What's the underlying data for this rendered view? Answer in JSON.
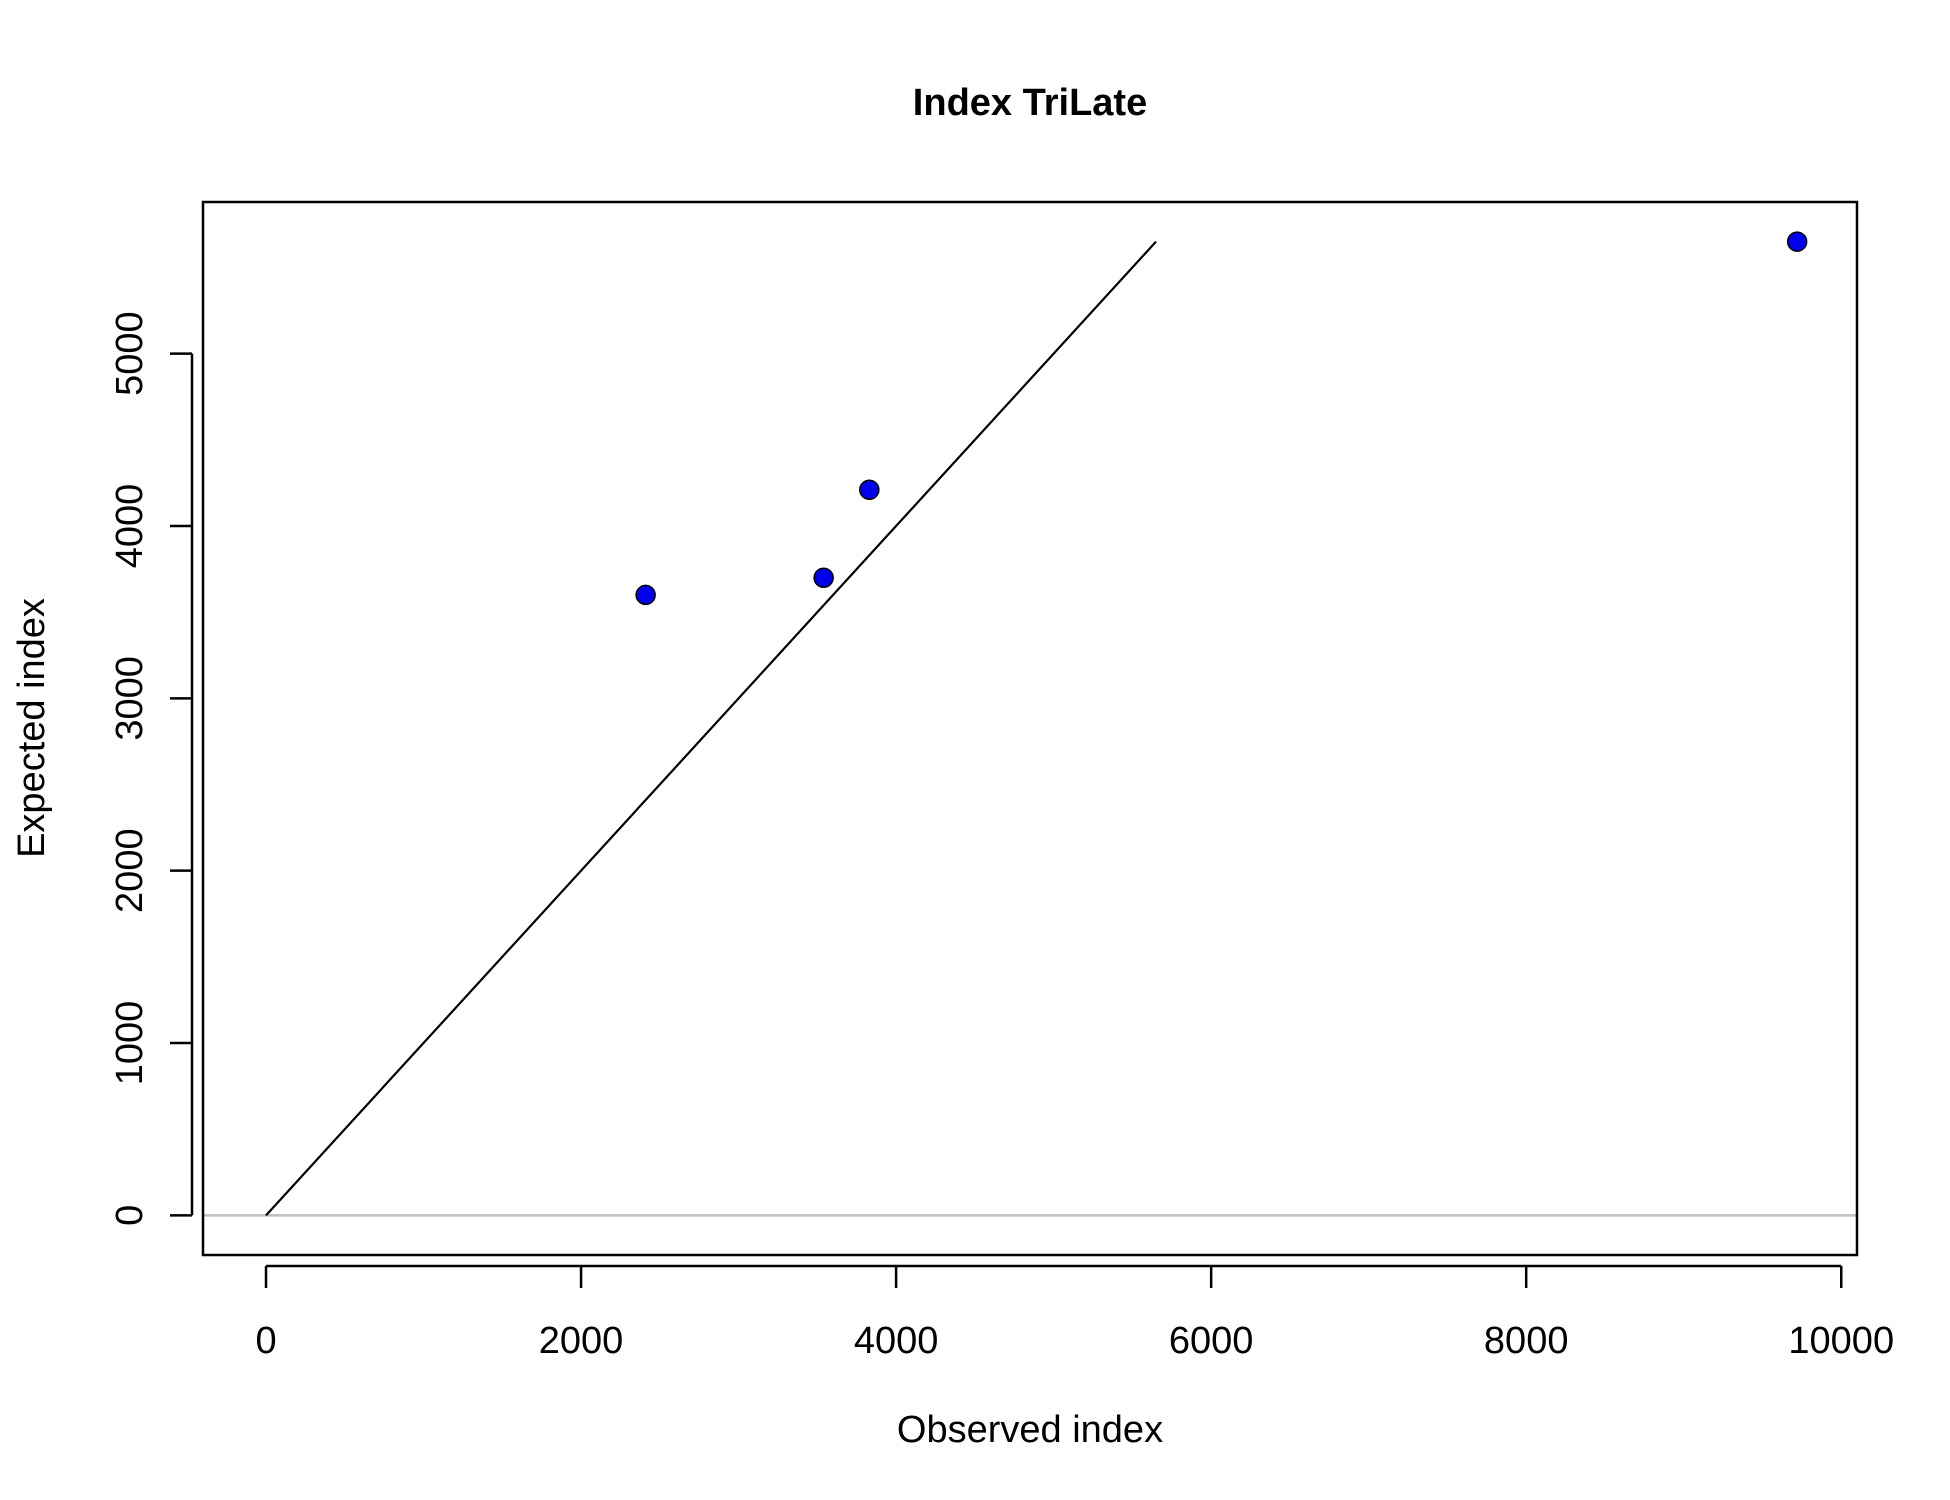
{
  "chart_data": {
    "type": "scatter",
    "title": "Index TriLate",
    "xlabel": "Observed index",
    "ylabel": "Expected index",
    "xlim": [
      -400,
      10100
    ],
    "ylim": [
      -230,
      5880
    ],
    "x_ticks": [
      0,
      2000,
      4000,
      6000,
      8000,
      10000
    ],
    "y_ticks": [
      0,
      1000,
      2000,
      3000,
      4000,
      5000
    ],
    "x_tick_labels": [
      "0",
      "2000",
      "4000",
      "6000",
      "8000",
      "10000"
    ],
    "y_tick_labels": [
      "0",
      "1000",
      "2000",
      "3000",
      "4000",
      "5000"
    ],
    "points": [
      {
        "x": 2410,
        "y": 3600
      },
      {
        "x": 3540,
        "y": 3700
      },
      {
        "x": 3830,
        "y": 4210
      },
      {
        "x": 9720,
        "y": 5650
      }
    ],
    "reference_line": {
      "x": [
        0,
        5650
      ],
      "y": [
        0,
        5650
      ],
      "color": "#000000"
    },
    "zero_line": {
      "y": 0,
      "color": "#bebebe"
    },
    "point_color": "#0000ee",
    "grid": false,
    "legend": "none"
  }
}
